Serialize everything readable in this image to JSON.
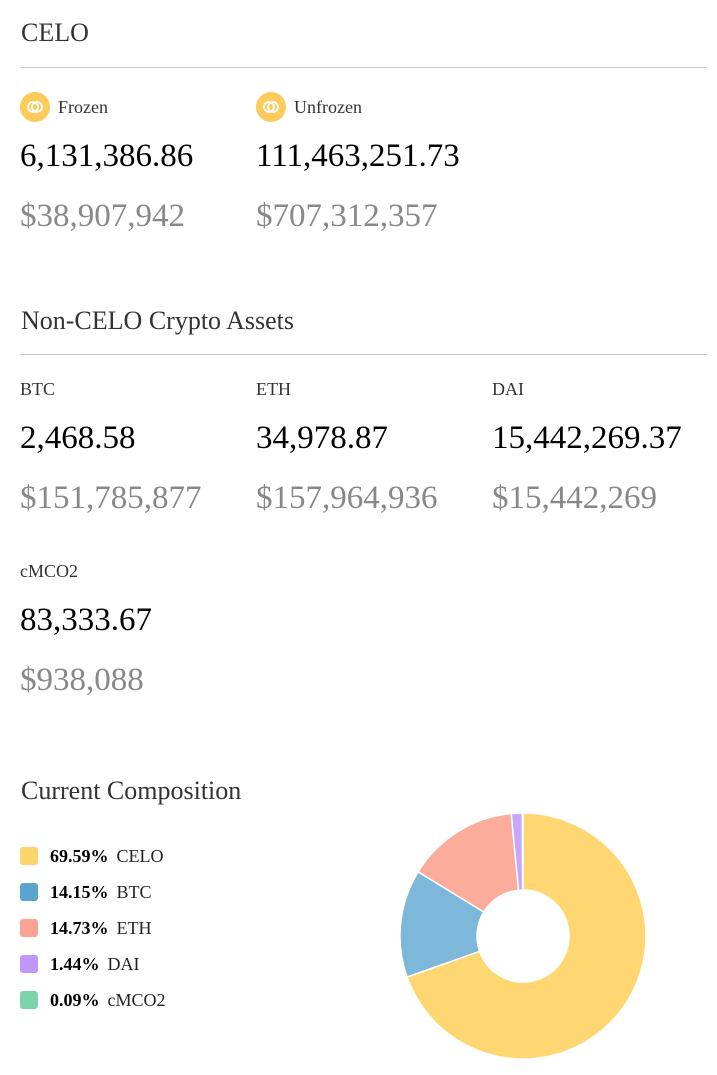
{
  "celo": {
    "title": "CELO",
    "frozen": {
      "label": "Frozen",
      "icon": "celo-coin-icon",
      "amount": "6,131,386.86",
      "usd": "$38,907,942"
    },
    "unfrozen": {
      "label": "Unfrozen",
      "icon": "celo-coin-icon",
      "amount": "111,463,251.73",
      "usd": "$707,312,357"
    }
  },
  "non_celo": {
    "title": "Non-CELO Crypto Assets",
    "assets": [
      {
        "label": "BTC",
        "amount": "2,468.58",
        "usd": "$151,785,877"
      },
      {
        "label": "ETH",
        "amount": "34,978.87",
        "usd": "$157,964,936"
      },
      {
        "label": "DAI",
        "amount": "15,442,269.37",
        "usd": "$15,442,269"
      },
      {
        "label": "cMCO2",
        "amount": "83,333.67",
        "usd": "$938,088"
      }
    ]
  },
  "composition": {
    "title": "Current Composition",
    "items": [
      {
        "pct": "69.59%",
        "name": "CELO",
        "color": "#fcd46e"
      },
      {
        "pct": "14.15%",
        "name": "BTC",
        "color": "#5ba6d0"
      },
      {
        "pct": "14.73%",
        "name": "ETH",
        "color": "#fba394"
      },
      {
        "pct": "1.44%",
        "name": "DAI",
        "color": "#bf97fa"
      },
      {
        "pct": "0.09%",
        "name": "cMCO2",
        "color": "#7fd3aa"
      }
    ]
  },
  "chart_data": {
    "type": "pie",
    "title": "Current Composition",
    "categories": [
      "CELO",
      "BTC",
      "ETH",
      "DAI",
      "cMCO2"
    ],
    "values": [
      69.59,
      14.15,
      14.73,
      1.44,
      0.09
    ],
    "colors": [
      "#fed672",
      "#7db7da",
      "#fcac9b",
      "#c7a6fb",
      "#8fdab3"
    ],
    "legend": "left"
  }
}
